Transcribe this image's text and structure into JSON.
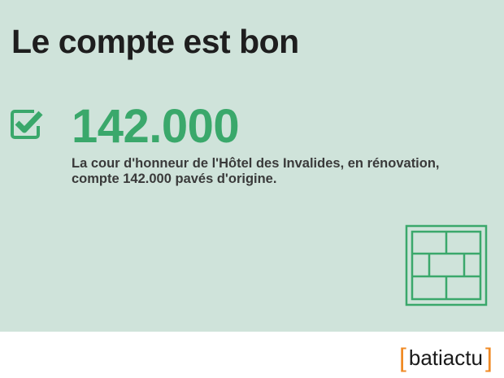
{
  "title": "Le compte est bon",
  "stat": {
    "icon": "checkbox-checked-icon",
    "value": "142.000",
    "description": "La cour d'honneur de l'Hôtel des Invalides, en rénovation, compte 142.000 pavés d'origine."
  },
  "illustration": {
    "icon": "paving-stones-icon"
  },
  "footer": {
    "logo": "batiactu",
    "bracket_open": "[",
    "bracket_close": "]"
  },
  "colors": {
    "accent": "#3aa86b",
    "background": "#cfe3da",
    "logo_bracket": "#f08a24"
  }
}
